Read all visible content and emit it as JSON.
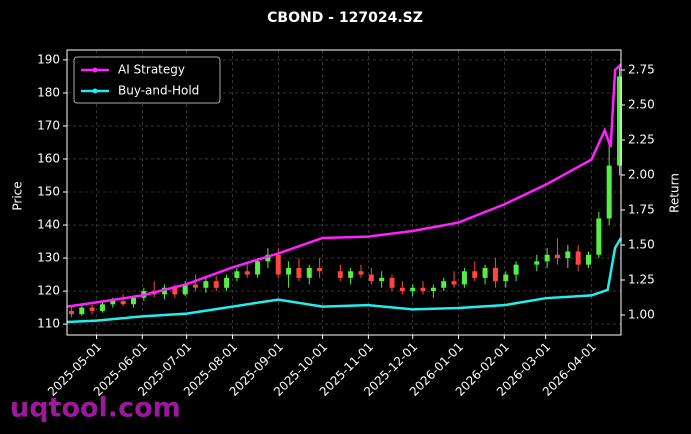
{
  "chart_data": {
    "type": "candlestick",
    "title": "CBOND - 127024.SZ",
    "watermark": "uqtool.com",
    "ylabel": "Price",
    "y2label": "Return",
    "xlim": [
      "2025-04-11",
      "2026-04-21"
    ],
    "xticks": [
      "2025-05-01",
      "2025-06-01",
      "2025-07-01",
      "2025-08-01",
      "2025-09-01",
      "2025-10-01",
      "2025-11-01",
      "2025-12-01",
      "2026-01-01",
      "2026-02-01",
      "2026-03-01",
      "2026-04-01"
    ],
    "ylim": [
      106.7,
      193
    ],
    "yticks": [
      110,
      120,
      130,
      140,
      150,
      160,
      170,
      180,
      190
    ],
    "y2lim": [
      0.857,
      2.893
    ],
    "y2ticks": [
      {
        "value": 1,
        "label": "1.00"
      },
      {
        "value": 1.25,
        "label": "1.25"
      },
      {
        "value": 1.5,
        "label": "1.50"
      },
      {
        "value": 1.75,
        "label": "1.75"
      },
      {
        "value": 2,
        "label": "2.00"
      },
      {
        "value": 2.25,
        "label": "2.25"
      },
      {
        "value": 2.5,
        "label": "2.50"
      },
      {
        "value": 2.75,
        "label": "2.75"
      }
    ],
    "grid": true,
    "legend": "upper left",
    "up_color": "#55ee44",
    "down_color": "#ff4444",
    "x": [
      "2025-04-14",
      "2025-04-21",
      "2025-04-28",
      "2025-05-05",
      "2025-05-12",
      "2025-05-19",
      "2025-05-26",
      "2025-06-02",
      "2025-06-09",
      "2025-06-16",
      "2025-06-23",
      "2025-06-30",
      "2025-07-07",
      "2025-07-14",
      "2025-07-21",
      "2025-07-28",
      "2025-08-04",
      "2025-08-11",
      "2025-08-18",
      "2025-08-25",
      "2025-09-01",
      "2025-09-08",
      "2025-09-15",
      "2025-09-22",
      "2025-09-29",
      "2025-10-13",
      "2025-10-20",
      "2025-10-27",
      "2025-11-03",
      "2025-11-10",
      "2025-11-17",
      "2025-11-24",
      "2025-12-01",
      "2025-12-08",
      "2025-12-15",
      "2025-12-22",
      "2025-12-29",
      "2026-01-05",
      "2026-01-12",
      "2026-01-19",
      "2026-01-26",
      "2026-02-02",
      "2026-02-09",
      "2026-02-23",
      "2026-03-02",
      "2026-03-09",
      "2026-03-16",
      "2026-03-23",
      "2026-03-30",
      "2026-04-06",
      "2026-04-13",
      "2026-04-20"
    ],
    "open": [
      114,
      113,
      115,
      114,
      116,
      117,
      116,
      118,
      120,
      119,
      121,
      119,
      122,
      121,
      123,
      121,
      124,
      126,
      125,
      129,
      131,
      125,
      127,
      124,
      127,
      126,
      124,
      126,
      125,
      123,
      124,
      121,
      120,
      121,
      120,
      121,
      123,
      122,
      126,
      124,
      127,
      123,
      125,
      128,
      129,
      131,
      130,
      132,
      128,
      131,
      142,
      158
    ],
    "high": [
      115.5,
      116,
      116,
      117,
      118,
      119,
      118.5,
      121,
      123,
      122,
      122,
      123,
      125,
      124,
      124.5,
      125,
      127,
      129,
      130,
      133,
      133,
      129,
      130,
      128,
      130,
      128,
      127,
      128,
      127,
      126,
      125,
      123,
      122,
      123,
      122,
      124,
      126,
      127,
      129,
      128,
      130,
      126,
      129,
      131,
      133,
      136,
      134,
      134,
      132,
      144,
      165,
      188
    ],
    "low": [
      112,
      112.5,
      113,
      113.5,
      115,
      115.5,
      115,
      117,
      118,
      117.5,
      118,
      118.5,
      120,
      119.5,
      120,
      120,
      123,
      124,
      124,
      127,
      124,
      121,
      123,
      122,
      124,
      123,
      122,
      124,
      122,
      121,
      120,
      119,
      118.5,
      119,
      118,
      120,
      121,
      121,
      123,
      122,
      121,
      121,
      123,
      126,
      127,
      128,
      127,
      126,
      127,
      130,
      140,
      155
    ],
    "close": [
      113,
      115,
      114,
      116,
      117,
      116,
      118,
      120,
      119,
      121,
      119,
      122,
      121,
      123,
      121,
      124,
      126,
      125,
      129,
      131,
      125,
      127,
      124,
      127,
      126,
      124,
      126,
      125,
      123,
      124,
      121,
      120,
      121,
      120,
      121,
      123,
      122,
      126,
      124,
      127,
      123,
      125,
      128,
      129,
      131,
      130,
      132,
      128,
      131,
      142,
      158,
      185
    ],
    "series": [
      {
        "name": "AI Strategy",
        "color": "#ff22ff",
        "axis": "y2",
        "x": [
          "2025-04-11",
          "2025-05-01",
          "2025-06-01",
          "2025-07-01",
          "2025-08-01",
          "2025-09-01",
          "2025-10-01",
          "2025-11-01",
          "2025-12-01",
          "2026-01-01",
          "2026-02-01",
          "2026-03-01",
          "2026-04-01",
          "2026-04-10",
          "2026-04-14",
          "2026-04-17",
          "2026-04-21"
        ],
        "values": [
          1.06,
          1.09,
          1.14,
          1.22,
          1.34,
          1.44,
          1.55,
          1.56,
          1.6,
          1.66,
          1.79,
          1.93,
          2.11,
          2.32,
          2.2,
          2.75,
          2.79
        ]
      },
      {
        "name": "Buy-and-Hold",
        "color": "#22eeee",
        "axis": "y2",
        "x": [
          "2025-04-11",
          "2025-05-01",
          "2025-06-01",
          "2025-07-01",
          "2025-08-01",
          "2025-09-01",
          "2025-10-01",
          "2025-11-01",
          "2025-12-01",
          "2026-01-01",
          "2026-02-01",
          "2026-03-01",
          "2026-04-01",
          "2026-04-12",
          "2026-04-17",
          "2026-04-21"
        ],
        "values": [
          0.95,
          0.96,
          0.99,
          1.01,
          1.06,
          1.11,
          1.06,
          1.07,
          1.04,
          1.05,
          1.07,
          1.12,
          1.14,
          1.18,
          1.48,
          1.55
        ]
      }
    ]
  }
}
